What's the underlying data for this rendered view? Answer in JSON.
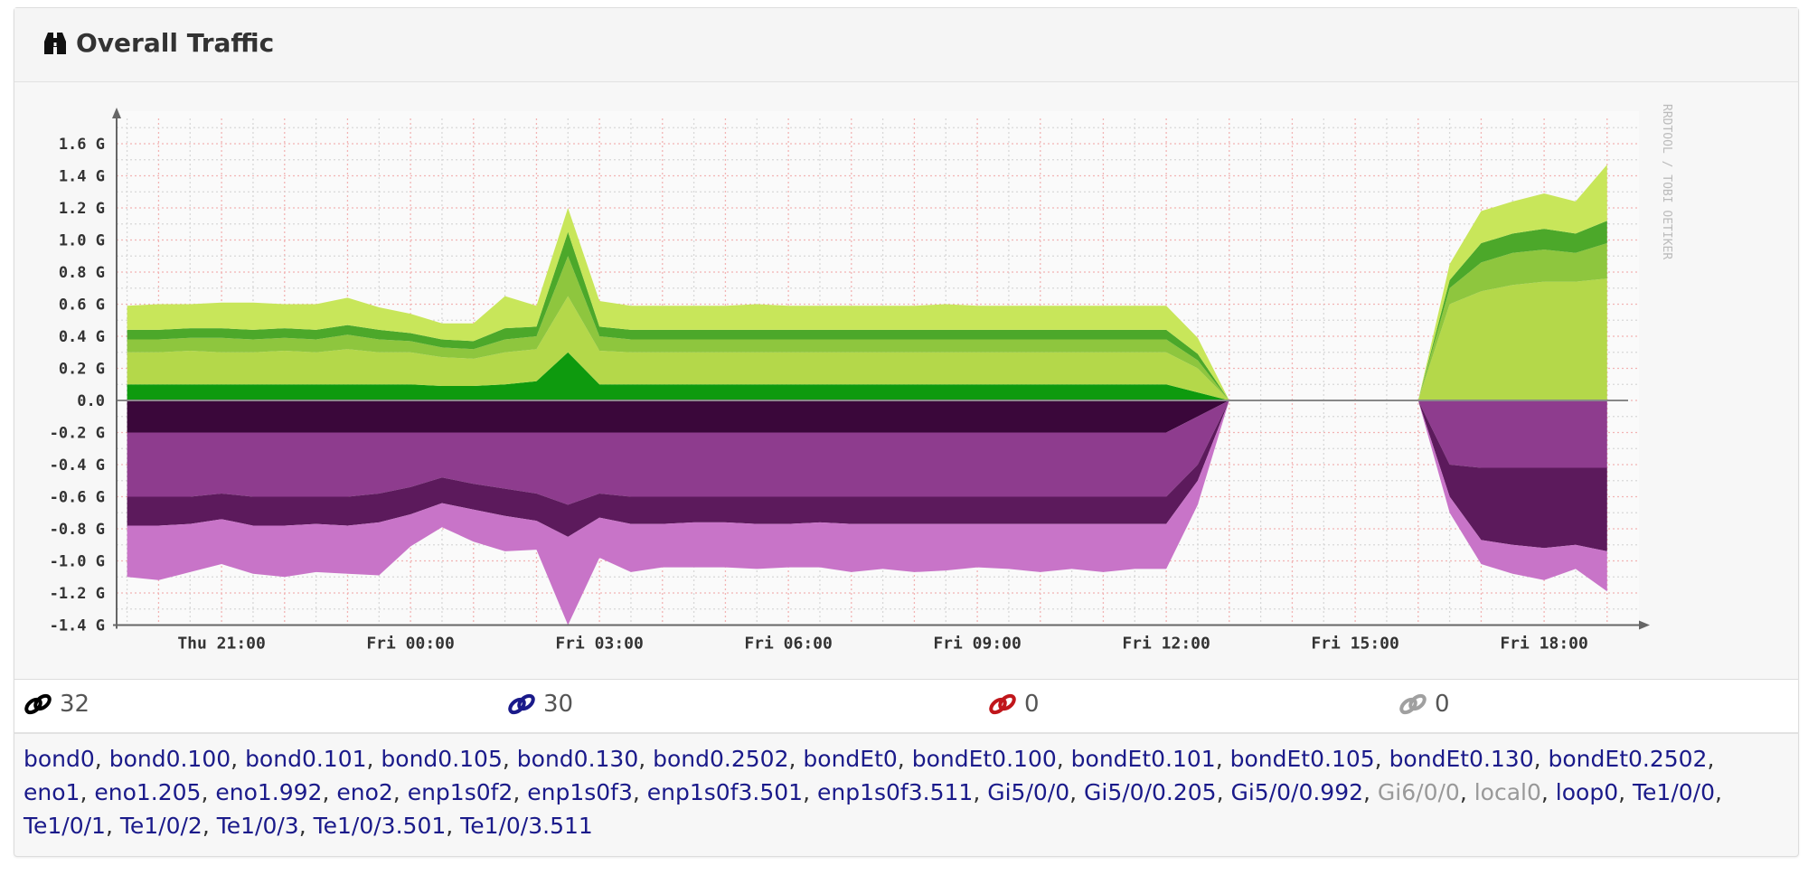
{
  "panel": {
    "title": "Overall Traffic",
    "icon": "binoculars-icon"
  },
  "counts": [
    {
      "icon": "link-icon",
      "color": "#000000",
      "value": "32"
    },
    {
      "icon": "link-icon",
      "color": "#1a1a8a",
      "value": "30"
    },
    {
      "icon": "link-icon",
      "color": "#c0161b",
      "value": "0"
    },
    {
      "icon": "link-icon",
      "color": "#a0a0a0",
      "value": "0"
    }
  ],
  "ports": [
    {
      "name": "bond0",
      "up": true
    },
    {
      "name": "bond0.100",
      "up": true
    },
    {
      "name": "bond0.101",
      "up": true
    },
    {
      "name": "bond0.105",
      "up": true
    },
    {
      "name": "bond0.130",
      "up": true
    },
    {
      "name": "bond0.2502",
      "up": true
    },
    {
      "name": "bondEt0",
      "up": true
    },
    {
      "name": "bondEt0.100",
      "up": true
    },
    {
      "name": "bondEt0.101",
      "up": true
    },
    {
      "name": "bondEt0.105",
      "up": true
    },
    {
      "name": "bondEt0.130",
      "up": true
    },
    {
      "name": "bondEt0.2502",
      "up": true
    },
    {
      "name": "eno1",
      "up": true
    },
    {
      "name": "eno1.205",
      "up": true
    },
    {
      "name": "eno1.992",
      "up": true
    },
    {
      "name": "eno2",
      "up": true
    },
    {
      "name": "enp1s0f2",
      "up": true
    },
    {
      "name": "enp1s0f3",
      "up": true
    },
    {
      "name": "enp1s0f3.501",
      "up": true
    },
    {
      "name": "enp1s0f3.511",
      "up": true
    },
    {
      "name": "Gi5/0/0",
      "up": true
    },
    {
      "name": "Gi5/0/0.205",
      "up": true
    },
    {
      "name": "Gi5/0/0.992",
      "up": true
    },
    {
      "name": "Gi6/0/0",
      "up": false
    },
    {
      "name": "local0",
      "up": false
    },
    {
      "name": "loop0",
      "up": true
    },
    {
      "name": "Te1/0/0",
      "up": true
    },
    {
      "name": "Te1/0/1",
      "up": true
    },
    {
      "name": "Te1/0/2",
      "up": true
    },
    {
      "name": "Te1/0/3",
      "up": true
    },
    {
      "name": "Te1/0/3.501",
      "up": true
    },
    {
      "name": "Te1/0/3.511",
      "up": true
    }
  ],
  "chart_data": {
    "type": "area",
    "stacked": true,
    "watermark": "RRDTOOL / TOBI OETIKER",
    "grid": true,
    "xlim": [
      "Thu 19:20",
      "Fri 19:20"
    ],
    "ylim": [
      -1.4,
      1.7
    ],
    "y_unit": "G",
    "yticks": [
      "1.6 G",
      "1.4 G",
      "1.2 G",
      "1.0 G",
      "0.8 G",
      "0.6 G",
      "0.4 G",
      "0.2 G",
      "0.0",
      "-0.2 G",
      "-0.4 G",
      "-0.6 G",
      "-0.8 G",
      "-1.0 G",
      "-1.2 G",
      "-1.4 G"
    ],
    "ytick_values": [
      1.6,
      1.4,
      1.2,
      1.0,
      0.8,
      0.6,
      0.4,
      0.2,
      0,
      -0.2,
      -0.4,
      -0.6,
      -0.8,
      -1.0,
      -1.2,
      -1.4
    ],
    "xticks": [
      "Thu 21:00",
      "Fri 00:00",
      "Fri 03:00",
      "Fri 06:00",
      "Fri 09:00",
      "Fri 12:00",
      "Fri 15:00",
      "Fri 18:00"
    ],
    "x": [
      "Thu 19:30",
      "Thu 20:00",
      "Thu 20:30",
      "Thu 21:00",
      "Thu 21:30",
      "Thu 22:00",
      "Thu 22:30",
      "Thu 23:00",
      "Thu 23:30",
      "Fri 00:00",
      "Fri 00:30",
      "Fri 01:00",
      "Fri 01:30",
      "Fri 02:00",
      "Fri 02:30",
      "Fri 03:00",
      "Fri 03:30",
      "Fri 04:00",
      "Fri 04:30",
      "Fri 05:00",
      "Fri 05:30",
      "Fri 06:00",
      "Fri 06:30",
      "Fri 07:00",
      "Fri 07:30",
      "Fri 08:00",
      "Fri 08:30",
      "Fri 09:00",
      "Fri 09:30",
      "Fri 10:00",
      "Fri 10:30",
      "Fri 11:00",
      "Fri 11:30",
      "Fri 12:00",
      "Fri 12:30",
      "Fri 13:00",
      "Fri 13:30",
      "Fri 14:00",
      "Fri 14:30",
      "Fri 15:00",
      "Fri 15:30",
      "Fri 16:00",
      "Fri 16:30",
      "Fri 17:00",
      "Fri 17:30",
      "Fri 18:00",
      "Fri 18:30",
      "Fri 19:00"
    ],
    "series_in": [
      {
        "color": "#0e9a0e",
        "values": [
          0.1,
          0.1,
          0.1,
          0.1,
          0.1,
          0.1,
          0.1,
          0.1,
          0.1,
          0.1,
          0.09,
          0.09,
          0.1,
          0.12,
          0.3,
          0.1,
          0.1,
          0.1,
          0.1,
          0.1,
          0.1,
          0.1,
          0.1,
          0.1,
          0.1,
          0.1,
          0.1,
          0.1,
          0.1,
          0.1,
          0.1,
          0.1,
          0.1,
          0.1,
          0.05,
          0,
          0,
          0,
          0,
          0,
          0,
          0,
          0,
          0,
          0,
          0,
          0,
          0
        ]
      },
      {
        "color": "#b4d84a",
        "values": [
          0.2,
          0.2,
          0.21,
          0.2,
          0.2,
          0.21,
          0.2,
          0.22,
          0.2,
          0.2,
          0.18,
          0.17,
          0.2,
          0.2,
          0.35,
          0.21,
          0.2,
          0.2,
          0.2,
          0.2,
          0.2,
          0.2,
          0.2,
          0.2,
          0.2,
          0.2,
          0.2,
          0.2,
          0.2,
          0.2,
          0.2,
          0.2,
          0.2,
          0.2,
          0.15,
          0,
          0,
          0,
          0,
          0,
          0,
          0,
          0.6,
          0.68,
          0.72,
          0.74,
          0.74,
          0.76
        ]
      },
      {
        "color": "#8ec63e",
        "values": [
          0.08,
          0.08,
          0.08,
          0.09,
          0.08,
          0.08,
          0.08,
          0.09,
          0.08,
          0.07,
          0.06,
          0.06,
          0.08,
          0.08,
          0.25,
          0.09,
          0.08,
          0.08,
          0.08,
          0.08,
          0.08,
          0.08,
          0.08,
          0.08,
          0.08,
          0.08,
          0.08,
          0.08,
          0.08,
          0.08,
          0.08,
          0.08,
          0.08,
          0.08,
          0.05,
          0,
          0,
          0,
          0,
          0,
          0,
          0,
          0.1,
          0.18,
          0.2,
          0.2,
          0.18,
          0.22
        ]
      },
      {
        "color": "#4ca82a",
        "values": [
          0.06,
          0.06,
          0.06,
          0.06,
          0.06,
          0.06,
          0.06,
          0.06,
          0.06,
          0.05,
          0.05,
          0.05,
          0.07,
          0.06,
          0.15,
          0.06,
          0.06,
          0.06,
          0.06,
          0.06,
          0.06,
          0.06,
          0.06,
          0.06,
          0.06,
          0.06,
          0.06,
          0.06,
          0.06,
          0.06,
          0.06,
          0.06,
          0.06,
          0.06,
          0.04,
          0,
          0,
          0,
          0,
          0,
          0,
          0,
          0.05,
          0.12,
          0.12,
          0.13,
          0.12,
          0.14
        ]
      },
      {
        "color": "#c8e65a",
        "values": [
          0.15,
          0.16,
          0.15,
          0.16,
          0.17,
          0.15,
          0.16,
          0.17,
          0.14,
          0.12,
          0.1,
          0.11,
          0.2,
          0.13,
          0.15,
          0.16,
          0.15,
          0.15,
          0.15,
          0.15,
          0.16,
          0.15,
          0.15,
          0.15,
          0.15,
          0.15,
          0.16,
          0.15,
          0.15,
          0.15,
          0.15,
          0.15,
          0.15,
          0.15,
          0.1,
          0,
          0,
          0,
          0,
          0,
          0,
          0,
          0.1,
          0.2,
          0.2,
          0.22,
          0.2,
          0.35
        ]
      }
    ],
    "series_out": [
      {
        "color": "#3a073a",
        "values": [
          0.2,
          0.2,
          0.2,
          0.2,
          0.2,
          0.2,
          0.2,
          0.2,
          0.2,
          0.2,
          0.2,
          0.2,
          0.2,
          0.2,
          0.2,
          0.2,
          0.2,
          0.2,
          0.2,
          0.2,
          0.2,
          0.2,
          0.2,
          0.2,
          0.2,
          0.2,
          0.2,
          0.2,
          0.2,
          0.2,
          0.2,
          0.2,
          0.2,
          0.2,
          0.1,
          0,
          0,
          0,
          0,
          0,
          0,
          0,
          0,
          0,
          0,
          0,
          0,
          0
        ]
      },
      {
        "color": "#8e3c8e",
        "values": [
          0.4,
          0.4,
          0.4,
          0.38,
          0.4,
          0.4,
          0.4,
          0.4,
          0.38,
          0.34,
          0.28,
          0.32,
          0.35,
          0.38,
          0.45,
          0.38,
          0.4,
          0.4,
          0.4,
          0.4,
          0.4,
          0.4,
          0.4,
          0.4,
          0.4,
          0.4,
          0.4,
          0.4,
          0.4,
          0.4,
          0.4,
          0.4,
          0.4,
          0.4,
          0.3,
          0,
          0,
          0,
          0,
          0,
          0,
          0,
          0.4,
          0.42,
          0.42,
          0.42,
          0.42,
          0.42
        ]
      },
      {
        "color": "#5c1a5c",
        "values": [
          0.18,
          0.18,
          0.17,
          0.16,
          0.18,
          0.18,
          0.17,
          0.18,
          0.18,
          0.17,
          0.16,
          0.16,
          0.17,
          0.17,
          0.2,
          0.15,
          0.17,
          0.17,
          0.16,
          0.16,
          0.17,
          0.17,
          0.16,
          0.17,
          0.17,
          0.17,
          0.17,
          0.17,
          0.17,
          0.17,
          0.17,
          0.17,
          0.17,
          0.17,
          0.1,
          0,
          0,
          0,
          0,
          0,
          0,
          0,
          0.2,
          0.45,
          0.48,
          0.5,
          0.48,
          0.52
        ]
      },
      {
        "color": "#c874c8",
        "values": [
          0.32,
          0.34,
          0.3,
          0.28,
          0.3,
          0.32,
          0.3,
          0.3,
          0.33,
          0.2,
          0.15,
          0.2,
          0.22,
          0.18,
          0.55,
          0.25,
          0.3,
          0.27,
          0.28,
          0.28,
          0.28,
          0.27,
          0.28,
          0.3,
          0.28,
          0.3,
          0.29,
          0.27,
          0.28,
          0.3,
          0.28,
          0.3,
          0.28,
          0.28,
          0.15,
          0,
          0,
          0,
          0,
          0,
          0,
          0,
          0.1,
          0.15,
          0.18,
          0.2,
          0.15,
          0.25
        ]
      }
    ]
  }
}
